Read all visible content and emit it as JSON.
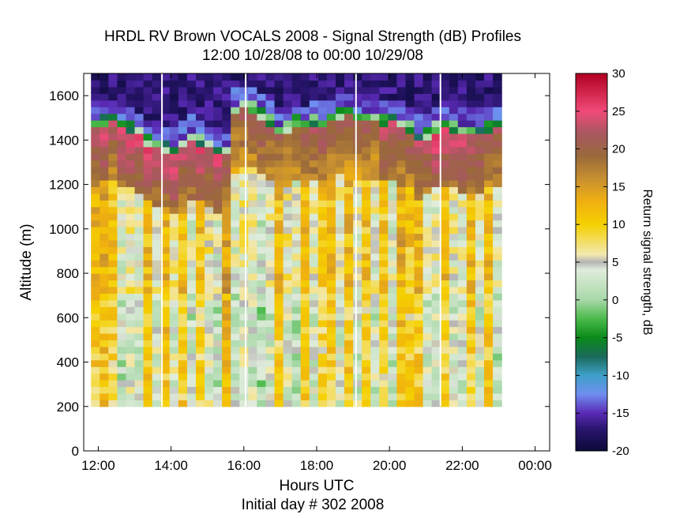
{
  "chart_data": {
    "type": "heatmap",
    "title": "HRDL RV Brown VOCALS 2008 - Signal Strength (dB) Profiles",
    "subtitle": "12:00 10/28/08 to 00:00 10/29/08",
    "xlabel": "Hours UTC",
    "xlabel2": "Initial day # 302  2008",
    "ylabel": "Altitude (m)",
    "xlim": [
      11.6,
      24.4
    ],
    "ylim": [
      0,
      1700
    ],
    "x_ticks": [
      12,
      14,
      16,
      18,
      20,
      22,
      24
    ],
    "x_tick_labels": [
      "12:00",
      "14:00",
      "16:00",
      "18:00",
      "20:00",
      "22:00",
      "00:00"
    ],
    "y_ticks": [
      0,
      200,
      400,
      600,
      800,
      1000,
      1200,
      1400,
      1600
    ],
    "y_tick_labels": [
      "0",
      "200",
      "400",
      "600",
      "800",
      "1000",
      "1200",
      "1400",
      "1600"
    ],
    "data_gaps_hours": [
      13.75,
      16.05,
      19.08,
      21.4
    ],
    "colorbar": {
      "label": "Return signal strength, dB",
      "range": [
        -20,
        30
      ],
      "ticks": [
        -20,
        -15,
        -10,
        -5,
        0,
        5,
        10,
        15,
        20,
        25,
        30
      ],
      "tick_labels": [
        "-20",
        "-15",
        "-10",
        "-5",
        "0",
        "5",
        "10",
        "15",
        "20",
        "25",
        "30"
      ],
      "colors": [
        [
          -20,
          "#0a0a38"
        ],
        [
          -17,
          "#2b1670"
        ],
        [
          -15,
          "#5a2ab5"
        ],
        [
          -12.5,
          "#6f8ef0"
        ],
        [
          -10,
          "#3ea0c8"
        ],
        [
          -7.5,
          "#1a6a5a"
        ],
        [
          -5,
          "#0a8a1a"
        ],
        [
          -2.5,
          "#4aba4a"
        ],
        [
          0,
          "#a8d8a8"
        ],
        [
          4,
          "#e0ecdc"
        ],
        [
          5,
          "#b4b4b4"
        ],
        [
          6,
          "#f2e8b0"
        ],
        [
          10,
          "#f5d000"
        ],
        [
          13,
          "#f0b010"
        ],
        [
          16,
          "#c89030"
        ],
        [
          19,
          "#9a6a3a"
        ],
        [
          22,
          "#a85860"
        ],
        [
          25,
          "#f04a78"
        ],
        [
          30,
          "#b00020"
        ]
      ]
    },
    "profiles": {
      "start_hour": 11.8,
      "step_hours": 0.24,
      "altitude_start": 200,
      "altitude_step": 30,
      "layer_top": [
        1440,
        1450,
        1460,
        1430,
        1420,
        1400,
        1360,
        1340,
        1330,
        1320,
        1350,
        1380,
        1360,
        1340,
        1320,
        1310,
        1500,
        1520,
        1510,
        1480,
        1450,
        1400,
        1420,
        1450,
        1430,
        1450,
        1440,
        1460,
        1480,
        1490,
        1470,
        1470,
        1460,
        1450,
        1460,
        1440,
        1420,
        1380,
        1390,
        1420,
        1430,
        1420,
        1410,
        1400,
        1410,
        1420,
        1430
      ],
      "layer_peak": [
        23,
        25,
        22,
        24,
        25,
        24,
        25,
        23,
        24,
        25,
        23,
        24,
        25,
        23,
        25,
        22,
        20,
        21,
        21,
        22,
        21,
        20,
        20,
        20,
        21,
        22,
        22,
        21,
        20,
        21,
        21,
        21,
        20,
        23,
        24,
        22,
        22,
        23,
        23,
        25,
        24,
        24,
        24,
        24,
        23,
        22,
        22
      ],
      "base_mean": [
        10,
        11,
        9,
        2,
        4,
        3,
        10,
        4,
        11,
        4,
        10,
        2,
        9,
        4,
        2,
        12,
        2,
        4,
        3,
        1,
        3,
        10,
        4,
        2,
        10,
        3,
        8,
        10,
        3,
        10,
        3,
        9,
        3,
        9,
        2,
        11,
        9,
        10,
        3,
        3,
        10,
        3,
        3,
        10,
        3,
        10,
        2
      ]
    }
  }
}
